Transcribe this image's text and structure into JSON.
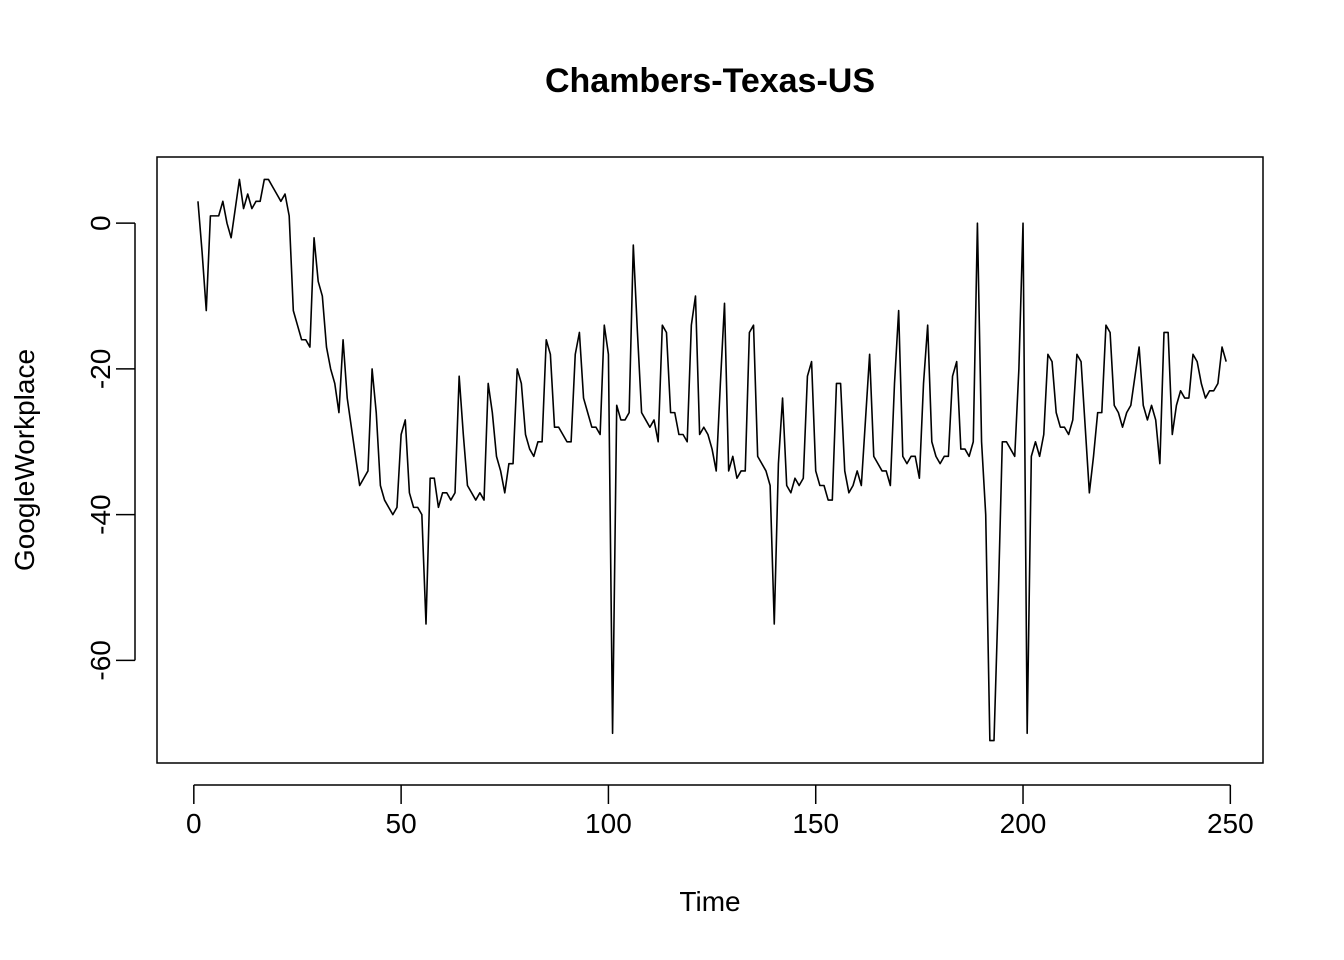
{
  "chart_data": {
    "type": "line",
    "title": "Chambers-Texas-US",
    "xlabel": "Time",
    "ylabel": "GoogleWorkplace",
    "xlim": [
      1,
      248
    ],
    "ylim": [
      -71,
      6
    ],
    "x_ticks": [
      0,
      50,
      100,
      150,
      200,
      250
    ],
    "y_ticks": [
      0,
      -20,
      -40,
      -60
    ],
    "grid": false,
    "legend": "none",
    "line_color": "#000000",
    "series": [
      {
        "values": [
          3,
          -4,
          -12,
          1,
          1,
          1,
          3,
          0,
          -2,
          2,
          6,
          2,
          4,
          2,
          3,
          3,
          6,
          6,
          5,
          4,
          3,
          4,
          1,
          -12,
          -14,
          -16,
          -16,
          -17,
          -2,
          -8,
          -10,
          -17,
          -20,
          -22,
          -26,
          -16,
          -24,
          -28,
          -32,
          -36,
          -35,
          -34,
          -20,
          -26,
          -36,
          -38,
          -39,
          -40,
          -39,
          -29,
          -27,
          -37,
          -39,
          -39,
          -40,
          -55,
          -35,
          -35,
          -39,
          -37,
          -37,
          -38,
          -37,
          -21,
          -29,
          -36,
          -37,
          -38,
          -37,
          -38,
          -22,
          -26,
          -32,
          -34,
          -37,
          -33,
          -33,
          -20,
          -22,
          -29,
          -31,
          -32,
          -30,
          -30,
          -16,
          -18,
          -28,
          -28,
          -29,
          -30,
          -30,
          -18,
          -15,
          -24,
          -26,
          -28,
          -28,
          -29,
          -14,
          -18,
          -70,
          -25,
          -27,
          -27,
          -26,
          -3,
          -15,
          -26,
          -27,
          -28,
          -27,
          -30,
          -14,
          -15,
          -26,
          -26,
          -29,
          -29,
          -30,
          -14,
          -10,
          -29,
          -28,
          -29,
          -31,
          -34,
          -22,
          -11,
          -34,
          -32,
          -35,
          -34,
          -34,
          -15,
          -14,
          -32,
          -33,
          -34,
          -36,
          -55,
          -33,
          -24,
          -36,
          -37,
          -35,
          -36,
          -35,
          -21,
          -19,
          -34,
          -36,
          -36,
          -38,
          -38,
          -22,
          -22,
          -34,
          -37,
          -36,
          -34,
          -36,
          -27,
          -18,
          -32,
          -33,
          -34,
          -34,
          -36,
          -22,
          -12,
          -32,
          -33,
          -32,
          -32,
          -35,
          -22,
          -14,
          -30,
          -32,
          -33,
          -32,
          -32,
          -21,
          -19,
          -31,
          -31,
          -32,
          -30,
          0,
          -30,
          -40,
          -71,
          -71,
          -52,
          -30,
          -30,
          -31,
          -32,
          -20,
          0,
          -70,
          -32,
          -30,
          -32,
          -29,
          -18,
          -19,
          -26,
          -28,
          -28,
          -29,
          -27,
          -18,
          -19,
          -28,
          -37,
          -32,
          -26,
          -26,
          -14,
          -15,
          -25,
          -26,
          -28,
          -26,
          -25,
          -21,
          -17,
          -25,
          -27,
          -25,
          -27,
          -33,
          -15,
          -15,
          -29,
          -25,
          -23,
          -24,
          -24,
          -18,
          -19,
          -22,
          -24,
          -23,
          -23,
          -22,
          -17,
          -19
        ]
      }
    ]
  }
}
